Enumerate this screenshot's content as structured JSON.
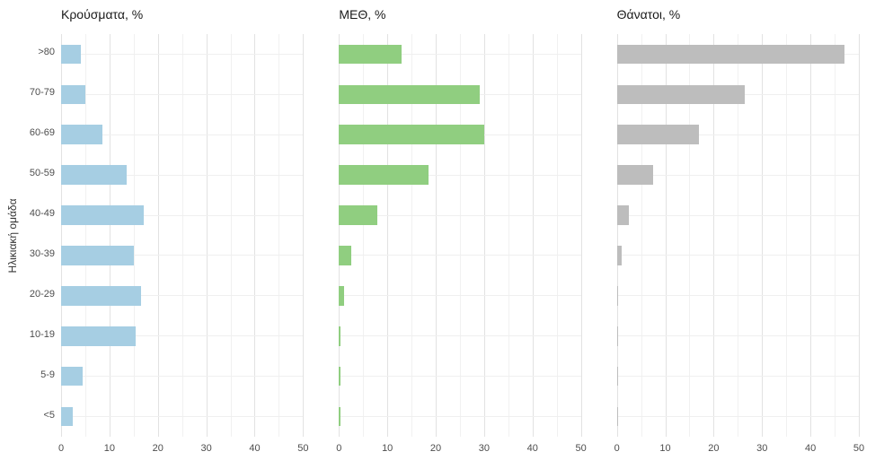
{
  "ylabel": "Ηλικιακή ομάδα",
  "categories_top_to_bottom": [
    ">80",
    "70-79",
    "60-69",
    "50-59",
    "40-49",
    "30-39",
    "20-29",
    "10-19",
    "5-9",
    "<5"
  ],
  "x_ticks": [
    0,
    10,
    20,
    30,
    40,
    50
  ],
  "colors": {
    "cases": "#a6cee3",
    "icu": "#90ce80",
    "deaths": "#bdbdbd",
    "grid_major": "#e2e2e2",
    "grid_minor": "#f1f1f1"
  },
  "chart_data": [
    {
      "type": "bar",
      "orientation": "horizontal",
      "title": "Κρούσματα, %",
      "categories": [
        ">80",
        "70-79",
        "60-69",
        "50-59",
        "40-49",
        "30-39",
        "20-29",
        "10-19",
        "5-9",
        "<5"
      ],
      "values": [
        4,
        5,
        8.5,
        13.5,
        17,
        15,
        16.5,
        15.5,
        4.5,
        2.5
      ],
      "color": "#a6cee3",
      "xlim": [
        0,
        50
      ],
      "x_ticks": [
        0,
        10,
        20,
        30,
        40,
        50
      ],
      "grid": true,
      "legend": false
    },
    {
      "type": "bar",
      "orientation": "horizontal",
      "title": "ΜΕΘ, %",
      "categories": [
        ">80",
        "70-79",
        "60-69",
        "50-59",
        "40-49",
        "30-39",
        "20-29",
        "10-19",
        "5-9",
        "<5"
      ],
      "values": [
        13,
        29,
        30,
        18.5,
        8,
        2.5,
        1,
        0.3,
        0.3,
        0.4
      ],
      "color": "#90ce80",
      "xlim": [
        0,
        50
      ],
      "x_ticks": [
        0,
        10,
        20,
        30,
        40,
        50
      ],
      "grid": true,
      "legend": false
    },
    {
      "type": "bar",
      "orientation": "horizontal",
      "title": "Θάνατοι, %",
      "categories": [
        ">80",
        "70-79",
        "60-69",
        "50-59",
        "40-49",
        "30-39",
        "20-29",
        "10-19",
        "5-9",
        "<5"
      ],
      "values": [
        47,
        26.5,
        17,
        7.5,
        2.5,
        1,
        0.3,
        0.3,
        0.1,
        0.3
      ],
      "color": "#bdbdbd",
      "xlim": [
        0,
        50
      ],
      "x_ticks": [
        0,
        10,
        20,
        30,
        40,
        50
      ],
      "grid": true,
      "legend": false
    }
  ]
}
